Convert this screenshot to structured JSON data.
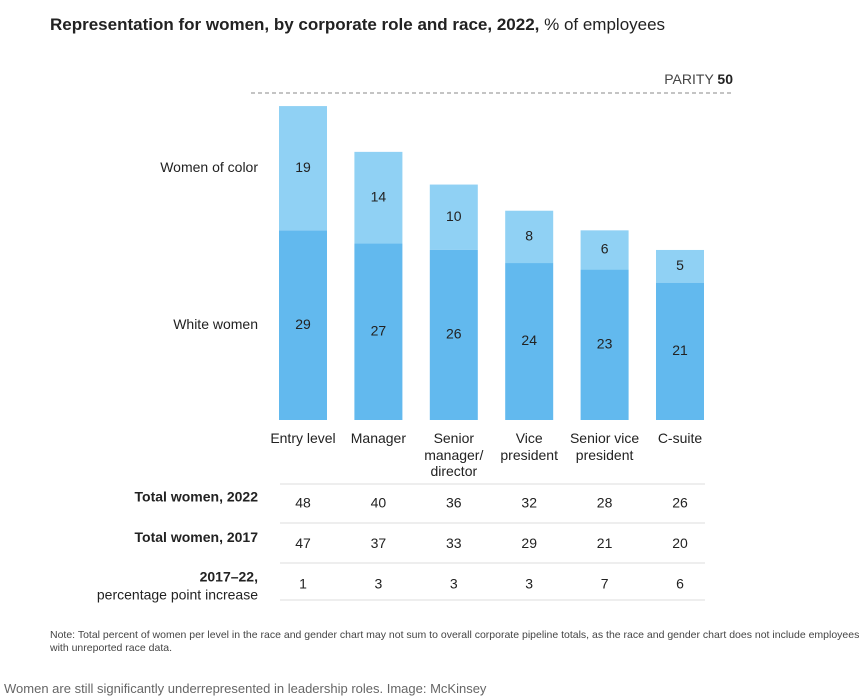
{
  "chart_data": {
    "type": "stacked_bar",
    "title": "Representation for women, by corporate role and race, 2022,",
    "subtitle": "% of employees",
    "categories": [
      "Entry level",
      "Manager",
      "Senior manager/ director",
      "Vice president",
      "Senior vice president",
      "C-suite"
    ],
    "series": [
      {
        "name": "White women",
        "color": "#62b9ee",
        "values": [
          29,
          27,
          26,
          24,
          23,
          21
        ]
      },
      {
        "name": "Women of color",
        "color": "#90d1f4",
        "values": [
          19,
          14,
          10,
          8,
          6,
          5
        ]
      }
    ],
    "ylim": [
      0,
      50
    ],
    "parity": {
      "label": "PARITY",
      "value": 50
    },
    "table": [
      {
        "label": "Total women, 2022",
        "values": [
          48,
          40,
          36,
          32,
          28,
          26
        ]
      },
      {
        "label": "Total women, 2017",
        "values": [
          47,
          37,
          33,
          29,
          21,
          20
        ]
      },
      {
        "label": "2017–22,",
        "sublabel": "percentage point increase",
        "values": [
          1,
          3,
          3,
          3,
          7,
          6
        ]
      }
    ],
    "note": "Note: Total percent of women per level in the race and gender chart may not sum to overall corporate pipeline totals, as the race and gender chart does not include employees with unreported race data.",
    "caption": "Women are still significantly underrepresented in leadership roles. Image: McKinsey"
  }
}
